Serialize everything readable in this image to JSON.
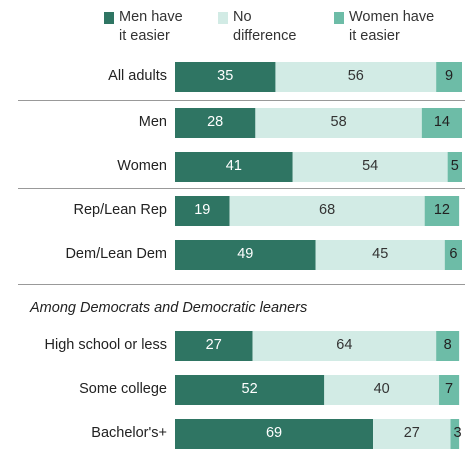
{
  "chart_data": {
    "type": "bar",
    "orientation": "horizontal",
    "stacked": true,
    "categories": [
      "All adults",
      "Men",
      "Women",
      "Rep/Lean Rep",
      "Dem/Lean Dem",
      "High school or less",
      "Some college",
      "Bachelor's+"
    ],
    "series": [
      {
        "name": "Men have\nit easier",
        "values": [
          35,
          28,
          41,
          19,
          49,
          27,
          52,
          69
        ],
        "color": "#2f7563",
        "label_color": "#ffffff"
      },
      {
        "name": "No\ndifference",
        "values": [
          56,
          58,
          54,
          68,
          45,
          64,
          40,
          27
        ],
        "color": "#d2ebe5",
        "label_color": "#333333"
      },
      {
        "name": "Women have\nit easier",
        "values": [
          9,
          14,
          5,
          12,
          6,
          8,
          7,
          3
        ],
        "color": "#6dbca7",
        "label_color": "#222222"
      }
    ],
    "legend_position": "top",
    "section_label": "Among Democrats and Democratic leaners",
    "xlim": [
      0,
      100
    ],
    "grid": false
  }
}
